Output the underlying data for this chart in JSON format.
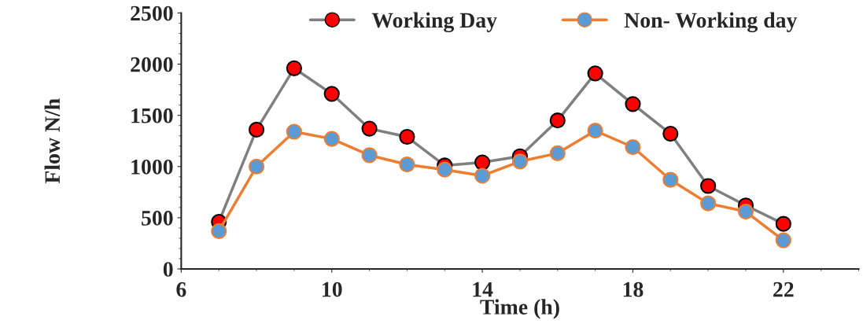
{
  "chart_data": {
    "type": "line",
    "xlabel": "Time (h)",
    "ylabel": "Flow N/h",
    "x": [
      7,
      8,
      9,
      10,
      11,
      12,
      13,
      14,
      15,
      16,
      17,
      18,
      19,
      20,
      21,
      22
    ],
    "series": [
      {
        "name": "Working Day",
        "color": "#7f7f7f",
        "colors": [
          "#ff0000",
          "#ff0000",
          "#ff0000",
          "#ff0000",
          "#ff0000",
          "#ff0000",
          "#ff0000",
          "#ff0000",
          "#ff0000",
          "#ff0000",
          "#ff0000",
          "#ff0000",
          "#ff0000",
          "#ff0000",
          "#ff0000",
          "#ff0000"
        ],
        "values": [
          460,
          1360,
          1960,
          1710,
          1370,
          1290,
          1010,
          1040,
          1100,
          1450,
          1910,
          1610,
          1320,
          810,
          620,
          440
        ]
      },
      {
        "name": "Non- Working day",
        "color": "#ed7d31",
        "colors": [
          "#5b9bd5",
          "#5b9bd5",
          "#5b9bd5",
          "#5b9bd5",
          "#5b9bd5",
          "#5b9bd5",
          "#5b9bd5",
          "#5b9bd5",
          "#5b9bd5",
          "#5b9bd5",
          "#5b9bd5",
          "#5b9bd5",
          "#5b9bd5",
          "#5b9bd5",
          "#5b9bd5",
          "#5b9bd5"
        ],
        "values": [
          370,
          1000,
          1340,
          1270,
          1110,
          1020,
          970,
          910,
          1050,
          1130,
          1350,
          1190,
          870,
          640,
          560,
          280
        ]
      }
    ],
    "xlim": [
      6,
      24
    ],
    "xticks": [
      6,
      10,
      14,
      18,
      22
    ],
    "ylim": [
      0,
      2500
    ],
    "yticks": [
      0,
      500,
      1000,
      1500,
      2000,
      2500
    ],
    "marker": "circle",
    "line_style": "solid",
    "legend": "top",
    "grid": false
  }
}
